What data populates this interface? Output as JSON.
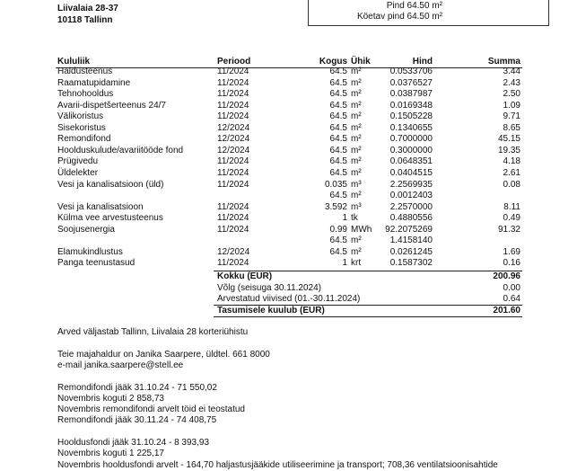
{
  "header": {
    "address": "Liivalaia 28-37",
    "city": "10118 Tallinn"
  },
  "area": {
    "area": "Pind 64.50 m²",
    "heated_area": "Köetav pind 64.50 m²"
  },
  "table": {
    "columns": [
      "Kululiik",
      "Periood",
      "Kogus",
      "Ühik",
      "Hind",
      "Summa"
    ],
    "rows": [
      {
        "name": "Haldusteenus",
        "period": "11/2024",
        "qty": "64.5",
        "unit": "m²",
        "price": "0.0533706",
        "sum": "3.44"
      },
      {
        "name": "Raamatupidamine",
        "period": "11/2024",
        "qty": "64.5",
        "unit": "m²",
        "price": "0.0376527",
        "sum": "2.43"
      },
      {
        "name": "Tehnohooldus",
        "period": "11/2024",
        "qty": "64.5",
        "unit": "m²",
        "price": "0.0387987",
        "sum": "2.50"
      },
      {
        "name": "Avarii-dispetšerteenus 24/7",
        "period": "11/2024",
        "qty": "64.5",
        "unit": "m²",
        "price": "0.0169348",
        "sum": "1.09"
      },
      {
        "name": "Välikoristus",
        "period": "11/2024",
        "qty": "64.5",
        "unit": "m²",
        "price": "0.1505228",
        "sum": "9.71"
      },
      {
        "name": "Sisekoristus",
        "period": "12/2024",
        "qty": "64.5",
        "unit": "m²",
        "price": "0.1340655",
        "sum": "8.65"
      },
      {
        "name": "Remondifond",
        "period": "12/2024",
        "qty": "64.5",
        "unit": "m²",
        "price": "0.7000000",
        "sum": "45.15"
      },
      {
        "name": "Hoolduskulude/avariitööde fond",
        "period": "12/2024",
        "qty": "64.5",
        "unit": "m²",
        "price": "0.3000000",
        "sum": "19.35"
      },
      {
        "name": "Prügivedu",
        "period": "11/2024",
        "qty": "64.5",
        "unit": "m²",
        "price": "0.0648351",
        "sum": "4.18"
      },
      {
        "name": "Üldelekter",
        "period": "11/2024",
        "qty": "64.5",
        "unit": "m²",
        "price": "0.0404515",
        "sum": "2.61"
      },
      {
        "name": "Vesi ja kanalisatsioon (üld)",
        "period": "11/2024",
        "qty": "0.035",
        "unit": "m³",
        "price": "2.2569935",
        "sum": "0.08",
        "extra": {
          "qty": "64.5",
          "unit": "m²",
          "price": "0.0012403"
        }
      },
      {
        "name": "Vesi ja kanalisatsioon",
        "period": "11/2024",
        "qty": "3.592",
        "unit": "m³",
        "price": "2.2570000",
        "sum": "8.11"
      },
      {
        "name": "Külma vee arvestusteenus",
        "period": "11/2024",
        "qty": "1",
        "unit": "tk",
        "price": "0.4880556",
        "sum": "0.49"
      },
      {
        "name": "Soojusenergia",
        "period": "11/2024",
        "qty": "0.99",
        "unit": "MWh",
        "price": "92.2075269",
        "sum": "91.32",
        "extra": {
          "qty": "64.5",
          "unit": "m²",
          "price": "1.4158140"
        }
      },
      {
        "name": "Elamukindlustus",
        "period": "12/2024",
        "qty": "64.5",
        "unit": "m²",
        "price": "0.0261245",
        "sum": "1.69"
      },
      {
        "name": "Panga teenustasud",
        "period": "11/2024",
        "qty": "1",
        "unit": "krt",
        "price": "0.1587302",
        "sum": "0.16"
      }
    ]
  },
  "totals": [
    {
      "label": "Kokku (EUR)",
      "value": "200.96",
      "bold": true
    },
    {
      "label": "Võlg (seisuga 30.11.2024)",
      "value": "0.00",
      "bold": false
    },
    {
      "label": "Arvestatud viivised (01.-30.11.2024)",
      "value": "0.64",
      "bold": false
    },
    {
      "label": "Tasumisele kuulub (EUR)",
      "value": "201.60",
      "bold": true
    }
  ],
  "notes": [
    [
      "Arved väljastab Tallinn, Liivalaia 28 korteriühistu"
    ],
    [
      "Teie majahaldur on Janika Saarpere, üldtel. 661 8000",
      " e-mail janika.saarpere@stell.ee"
    ],
    [
      "Remondifondi jääk 31.10.24 - 71 550,02",
      "Novembris koguti 2 858,73",
      "Novembris remondifondi arvelt töid ei teostatud",
      "Remondifondi jääk 30.11.24 - 74 408,75"
    ],
    [
      "Hooldusfondi jääk 31.10.24 - 8 393,93",
      "Novembris koguti 1 225,17",
      "Novembris hooldusfondi arvelt - 164,70 haljastusjääkide utiliseerimine ja transport; 708,36 ventilatsioonisahtide"
    ]
  ]
}
